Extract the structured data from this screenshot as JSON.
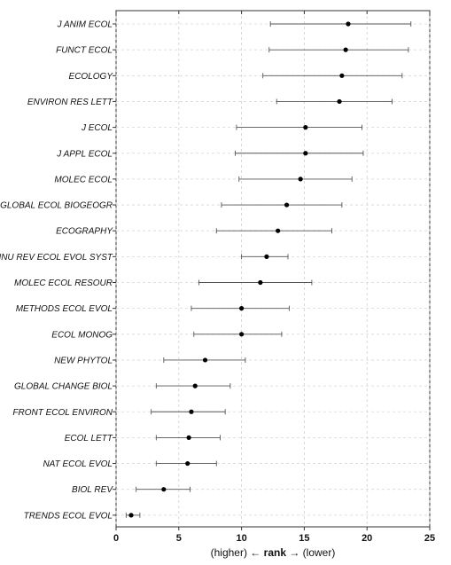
{
  "chart_data": {
    "type": "dot-range",
    "categories": [
      "J ANIM ECOL",
      "FUNCT ECOL",
      "ECOLOGY",
      "ENVIRON RES LETT",
      "J ECOL",
      "J APPL ECOL",
      "MOLEC ECOL",
      "GLOBAL ECOL BIOGEOGR",
      "ECOGRAPHY",
      "ANNU REV ECOL EVOL SYST",
      "MOLEC ECOL RESOUR",
      "METHODS ECOL EVOL",
      "ECOL MONOG",
      "NEW PHYTOL",
      "GLOBAL CHANGE BIOL",
      "FRONT ECOL ENVIRON",
      "ECOL LETT",
      "NAT ECOL EVOL",
      "BIOL REV",
      "TRENDS ECOL EVOL"
    ],
    "values": [
      18.5,
      18.3,
      18.0,
      17.8,
      15.1,
      15.1,
      14.7,
      13.6,
      12.9,
      12.0,
      11.5,
      10.0,
      10.0,
      7.1,
      6.3,
      6.0,
      5.8,
      5.7,
      3.8,
      1.2
    ],
    "lower": [
      12.3,
      12.2,
      11.7,
      12.8,
      9.6,
      9.5,
      9.8,
      8.4,
      8.0,
      10.0,
      6.6,
      6.0,
      6.2,
      3.8,
      3.2,
      2.8,
      3.2,
      3.2,
      1.6,
      0.8
    ],
    "upper": [
      23.5,
      23.3,
      22.8,
      22.0,
      19.6,
      19.7,
      18.8,
      18.0,
      17.2,
      13.7,
      15.6,
      13.8,
      13.2,
      10.3,
      9.1,
      8.7,
      8.3,
      8.0,
      5.9,
      1.9
    ],
    "xlabel_parts": [
      "(higher) ← ",
      "rank",
      " → (lower)"
    ],
    "xlim": [
      0,
      25
    ],
    "xticks": [
      "0",
      "5",
      "10",
      "15",
      "20",
      "25"
    ],
    "grid": true
  }
}
